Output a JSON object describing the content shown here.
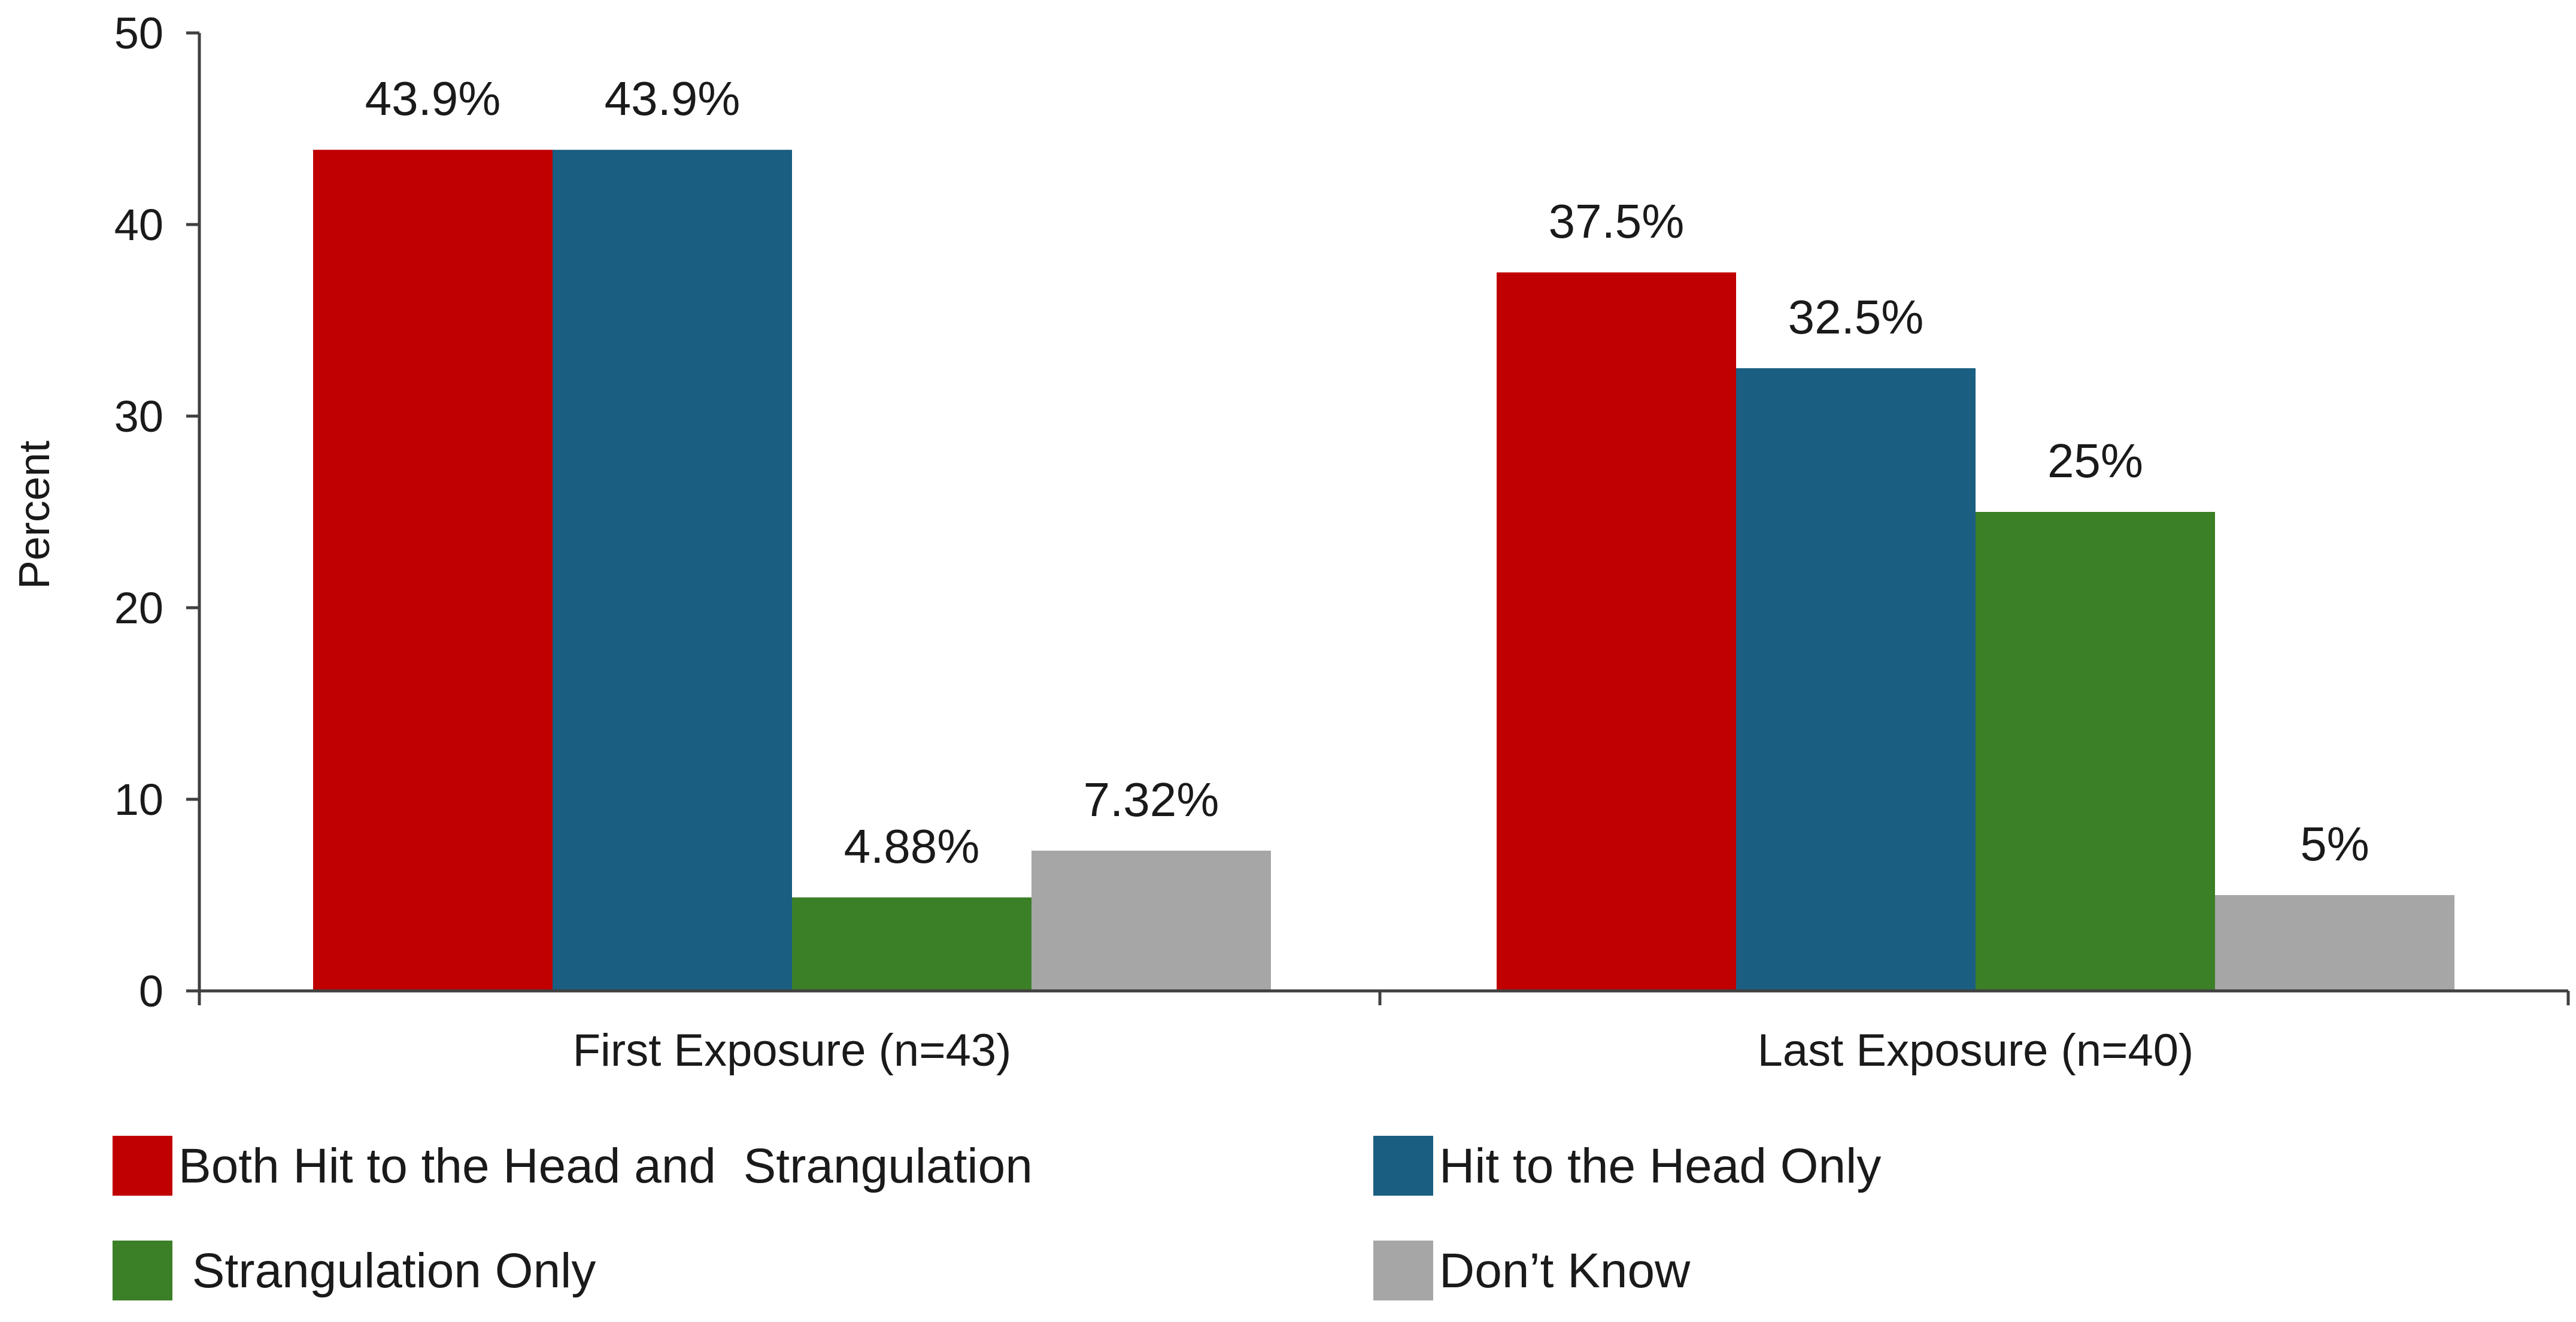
{
  "chart_data": {
    "type": "bar",
    "title": "",
    "xlabel": "",
    "ylabel": "Percent",
    "ylim": [
      0,
      50
    ],
    "yticks": [
      0,
      10,
      20,
      30,
      40,
      50
    ],
    "grid": false,
    "legend_position": "bottom",
    "categories": [
      "First Exposure (n=43)",
      "Last Exposure (n=40)"
    ],
    "series": [
      {
        "name": "Both Hit to the Head and  Strangulation",
        "color": "#c00000",
        "values": [
          43.9,
          37.5
        ],
        "labels": [
          "43.9%",
          "37.5%"
        ]
      },
      {
        "name": "Hit to the Head Only",
        "color": "#1a5e82",
        "values": [
          43.9,
          32.5
        ],
        "labels": [
          "43.9%",
          "32.5%"
        ]
      },
      {
        "name": " Strangulation Only",
        "color": "#3b7f27",
        "values": [
          4.88,
          25
        ],
        "labels": [
          "4.88%",
          "25%"
        ]
      },
      {
        "name": "Don’t Know",
        "color": "#a6a6a6",
        "values": [
          7.32,
          5
        ],
        "labels": [
          "7.32%",
          "5%"
        ]
      }
    ]
  }
}
